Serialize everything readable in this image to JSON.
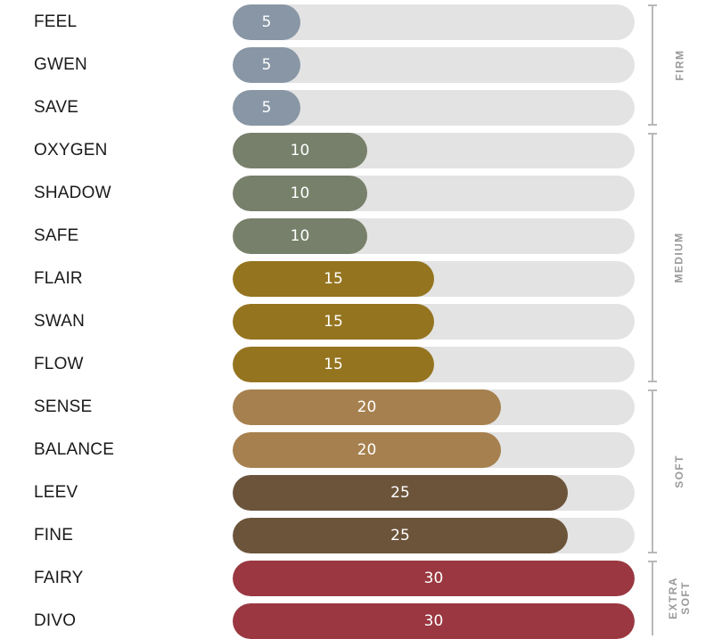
{
  "chart_data": {
    "type": "bar",
    "orientation": "horizontal",
    "max": 30,
    "categories": [
      "FEEL",
      "GWEN",
      "SAVE",
      "OXYGEN",
      "SHADOW",
      "SAFE",
      "FLAIR",
      "SWAN",
      "FLOW",
      "SENSE",
      "BALANCE",
      "LEEV",
      "FINE",
      "FAIRY",
      "DIVO"
    ],
    "values": [
      5,
      5,
      5,
      10,
      10,
      10,
      15,
      15,
      15,
      20,
      20,
      25,
      25,
      30,
      30
    ],
    "value_colors": {
      "5": "#8896a5",
      "10": "#77806a",
      "15": "#94741f",
      "20": "#a6804e",
      "25": "#6b543a",
      "30": "#9a3740"
    },
    "track_color": "#e3e3e3",
    "groups": [
      {
        "label": "FIRM",
        "start": 0,
        "end": 2
      },
      {
        "label": "MEDIUM",
        "start": 3,
        "end": 8
      },
      {
        "label": "SOFT",
        "start": 9,
        "end": 12
      },
      {
        "label": "EXTRA\nSOFT",
        "start": 13,
        "end": 14
      }
    ]
  }
}
